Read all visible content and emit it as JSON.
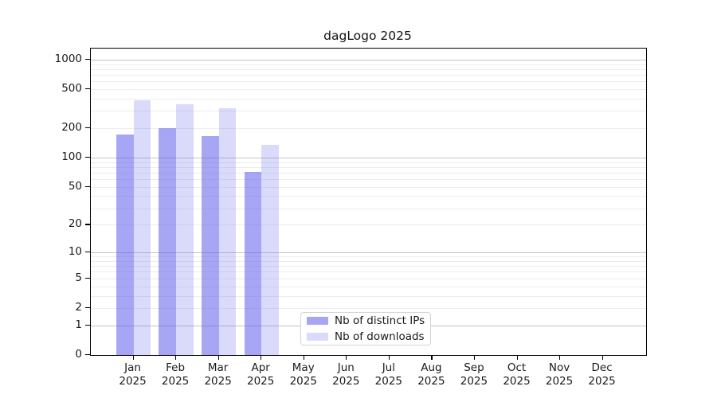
{
  "chart_data": {
    "type": "bar",
    "title": "dagLogo 2025",
    "categories": [
      "Jan",
      "Feb",
      "Mar",
      "Apr",
      "May",
      "Jun",
      "Jul",
      "Aug",
      "Sep",
      "Oct",
      "Nov",
      "Dec"
    ],
    "category_year": "2025",
    "series": [
      {
        "name": "Nb of distinct IPs",
        "color": "rgba(102,102,238,0.58)",
        "values": [
          174,
          200,
          166,
          72,
          null,
          null,
          null,
          null,
          null,
          null,
          null,
          null
        ]
      },
      {
        "name": "Nb of downloads",
        "color": "rgba(102,102,238,0.24)",
        "values": [
          385,
          351,
          322,
          136,
          null,
          null,
          null,
          null,
          null,
          null,
          null,
          null
        ]
      }
    ],
    "y_scale": "log1p",
    "ylim": [
      0,
      1300
    ],
    "y_ticks": [
      0,
      1,
      2,
      5,
      10,
      20,
      50,
      100,
      200,
      500,
      1000
    ],
    "y_major_gridlines": [
      1,
      10,
      100,
      1000
    ],
    "y_minor_gridlines": [
      2,
      3,
      4,
      5,
      6,
      7,
      8,
      9,
      20,
      30,
      40,
      50,
      60,
      70,
      80,
      90,
      200,
      300,
      400,
      500,
      600,
      700,
      800,
      900
    ],
    "grid": {
      "minor_color": "#ededed",
      "major_color": "#c4c4c4"
    },
    "axis_color": "#000000",
    "text_color": "#1a1a1a",
    "background": "#ffffff",
    "legend": {
      "position": "inside lower-center-left",
      "border_color": "#d4d4d4",
      "background": "#ffffff"
    }
  }
}
